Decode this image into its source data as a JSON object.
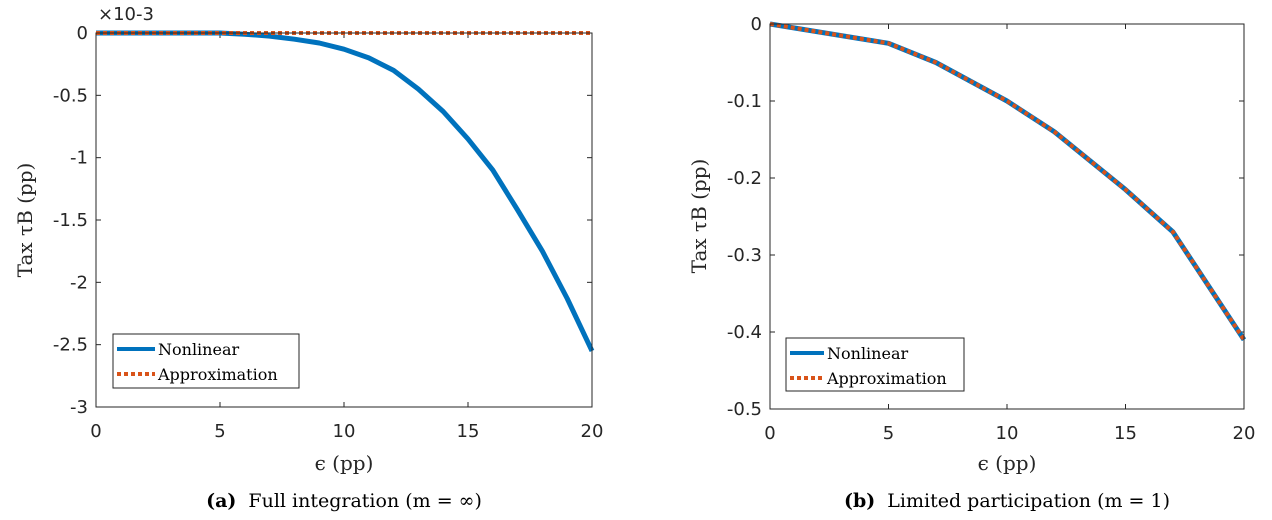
{
  "chart_data": [
    {
      "type": "line",
      "caption_prefix": "(a)",
      "caption": "Full integration (m = ∞)",
      "xlabel": "ϵ (pp)",
      "ylabel": "Tax τB (pp)",
      "y_exponent": "×10-3",
      "xlim": [
        0,
        20
      ],
      "ylim": [
        -3,
        0
      ],
      "xticks": [
        "0",
        "5",
        "10",
        "15",
        "20"
      ],
      "yticks": [
        "0",
        "-0.5",
        "-1",
        "-1.5",
        "-2",
        "-2.5",
        "-3"
      ],
      "legend_position": "bottom-left",
      "grid": false,
      "series": [
        {
          "name": "Nonlinear",
          "color": "#0072BD",
          "style": "solid",
          "x": [
            0,
            1,
            2,
            3,
            4,
            5,
            6,
            7,
            8,
            9,
            10,
            11,
            12,
            13,
            14,
            15,
            16,
            17,
            18,
            19,
            20
          ],
          "y": [
            0,
            0,
            0,
            0,
            0,
            0,
            -0.01,
            -0.025,
            -0.05,
            -0.08,
            -0.13,
            -0.2,
            -0.3,
            -0.45,
            -0.63,
            -0.85,
            -1.1,
            -1.42,
            -1.75,
            -2.13,
            -2.55
          ]
        },
        {
          "name": "Approximation",
          "color": "#D95319",
          "style": "dotted",
          "x": [
            0,
            20
          ],
          "y": [
            0,
            0
          ]
        }
      ]
    },
    {
      "type": "line",
      "caption_prefix": "(b)",
      "caption": "Limited participation (m = 1)",
      "xlabel": "ϵ (pp)",
      "ylabel": "Tax τB (pp)",
      "xlim": [
        0,
        20
      ],
      "ylim": [
        -0.5,
        0
      ],
      "xticks": [
        "0",
        "5",
        "10",
        "15",
        "20"
      ],
      "yticks": [
        "0",
        "-0.1",
        "-0.2",
        "-0.3",
        "-0.4",
        "-0.5"
      ],
      "legend_position": "bottom-left",
      "grid": false,
      "series": [
        {
          "name": "Nonlinear",
          "color": "#0072BD",
          "style": "solid",
          "x": [
            0,
            5,
            7,
            10,
            12,
            15,
            17,
            20
          ],
          "y": [
            0,
            -0.025,
            -0.05,
            -0.1,
            -0.14,
            -0.215,
            -0.27,
            -0.41
          ]
        },
        {
          "name": "Approximation",
          "color": "#D95319",
          "style": "dotted",
          "x": [
            0,
            5,
            7,
            10,
            12,
            15,
            17,
            20
          ],
          "y": [
            0,
            -0.025,
            -0.05,
            -0.1,
            -0.14,
            -0.215,
            -0.27,
            -0.41
          ]
        }
      ]
    }
  ]
}
